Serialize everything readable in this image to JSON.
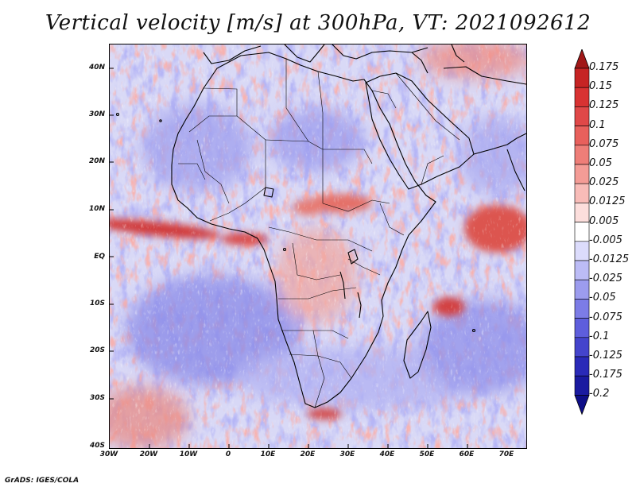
{
  "title": "Vertical velocity [m/s] at 300hPa, VT: 2021092612",
  "variable": "Vertical velocity",
  "units": "m/s",
  "level": "300hPa",
  "valid_time": "2021092612",
  "latitude_labels": [
    "40N",
    "30N",
    "20N",
    "10N",
    "EQ",
    "10S",
    "20S",
    "30S",
    "40S"
  ],
  "longitude_labels": [
    "30W",
    "20W",
    "10W",
    "0",
    "10E",
    "20E",
    "30E",
    "40E",
    "50E",
    "60E",
    "70E"
  ],
  "colorbar": {
    "levels": [
      "0.175",
      "0.15",
      "0.125",
      "0.1",
      "0.075",
      "0.05",
      "0.025",
      "0.0125",
      "0.005",
      "-0.005",
      "-0.0125",
      "-0.025",
      "-0.05",
      "-0.075",
      "-0.1",
      "-0.125",
      "-0.175",
      "-0.2"
    ],
    "colors": [
      "#a11818",
      "#c62424",
      "#d83232",
      "#e04848",
      "#e8605c",
      "#ee7e78",
      "#f49c96",
      "#f8bcb8",
      "#fcdedc",
      "#ffffff",
      "#dcdcfc",
      "#bcbcf6",
      "#9c9cee",
      "#7c7ce6",
      "#5e5edc",
      "#4444cc",
      "#2a2ab8",
      "#1a1aa0",
      "#0e0e88"
    ]
  },
  "credit": "GrADS: IGES/COLA"
}
